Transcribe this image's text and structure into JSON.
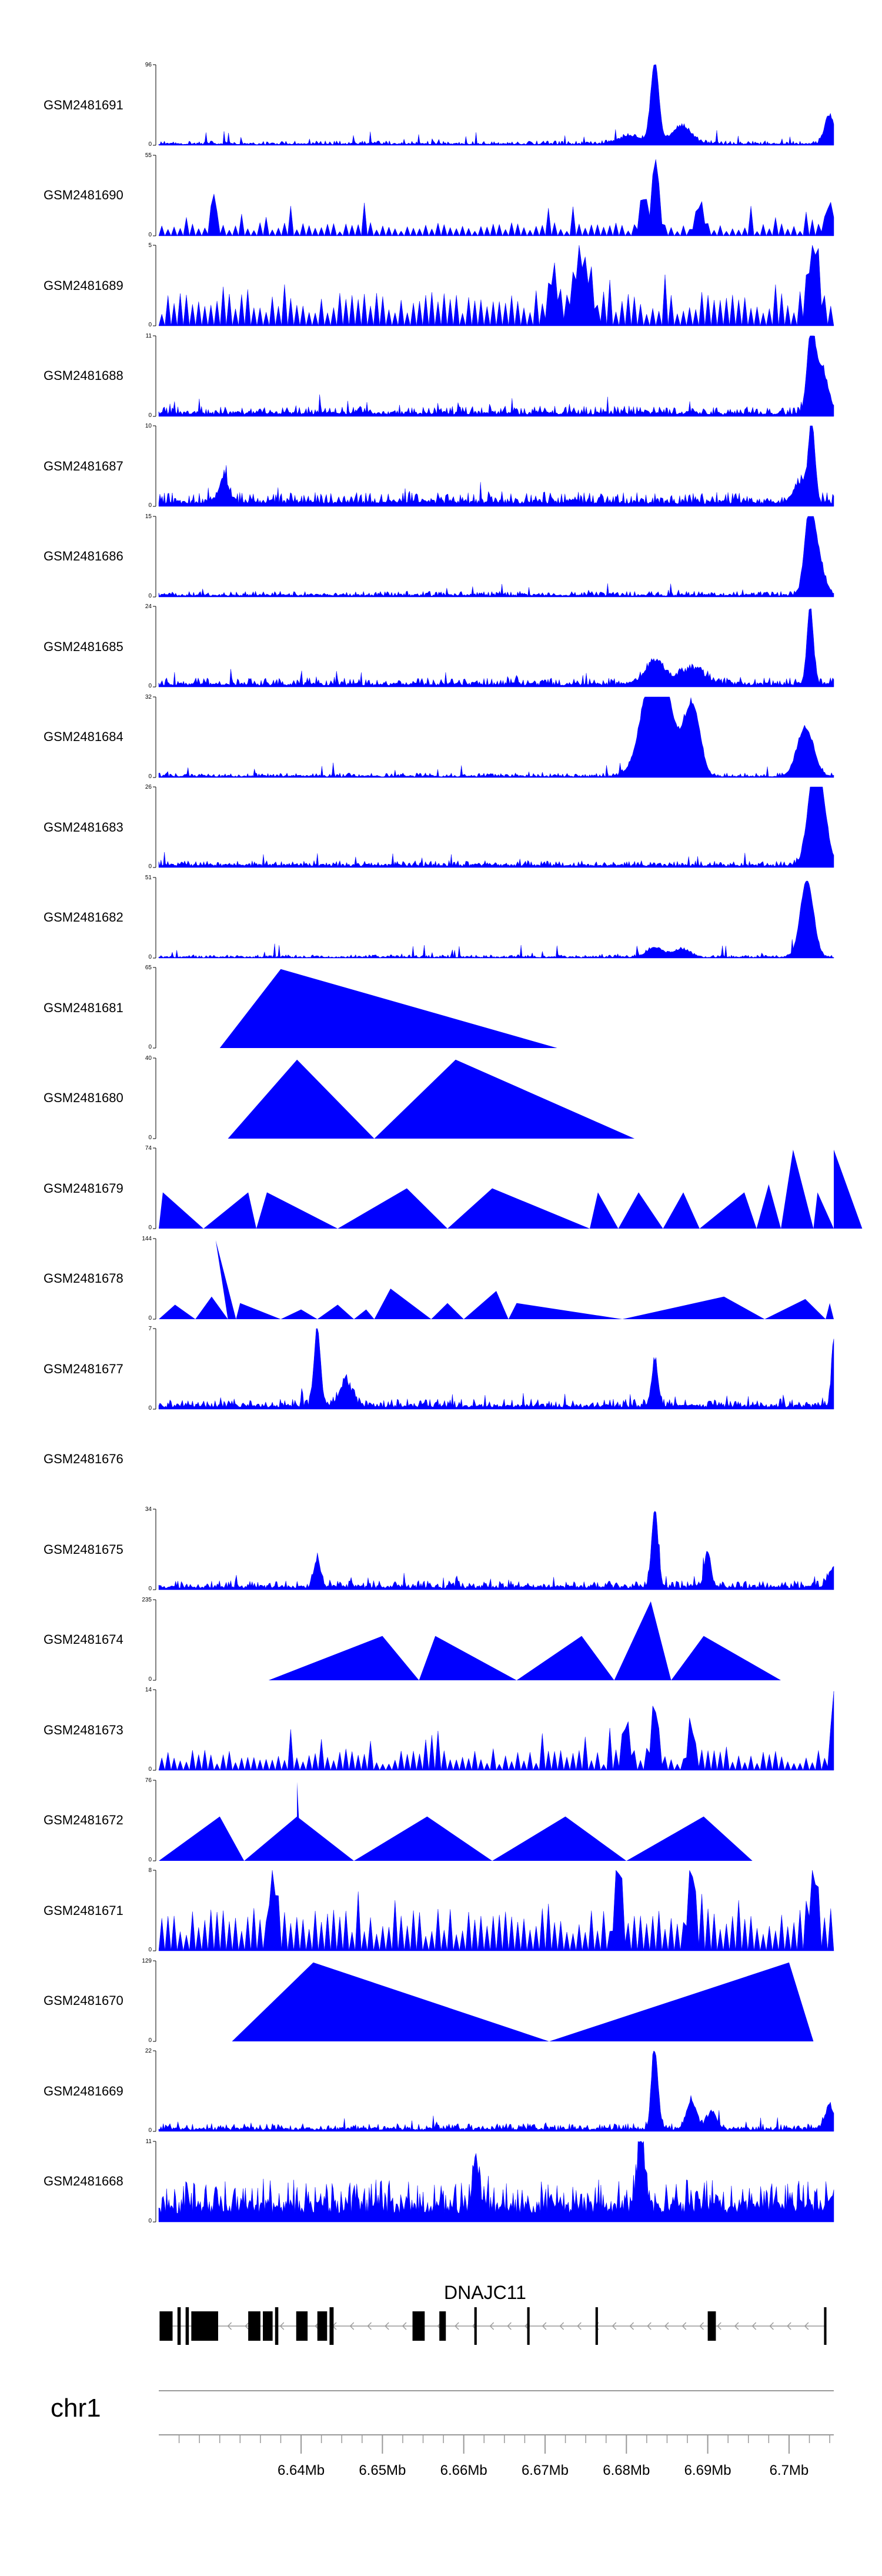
{
  "chart_data": {
    "type": "area",
    "title": "",
    "fill_color": "#0000ff",
    "gene_color": "#000000",
    "chromosome": "chr1",
    "gene": "DNAJC11",
    "xlim_mb": [
      6.6225,
      6.7055
    ],
    "x_ticks": [
      "6.64Mb",
      "6.65Mb",
      "6.66Mb",
      "6.67Mb",
      "6.68Mb",
      "6.69Mb",
      "6.7Mb"
    ],
    "x_tick_values": [
      6.64,
      6.65,
      6.66,
      6.67,
      6.68,
      6.69,
      6.7
    ],
    "exons_mb": [
      [
        6.6226,
        6.6242
      ],
      [
        6.6248,
        6.6252
      ],
      [
        6.6258,
        6.6262
      ],
      [
        6.6265,
        6.6298
      ],
      [
        6.6335,
        6.635
      ],
      [
        6.6353,
        6.6365
      ],
      [
        6.6368,
        6.6372
      ],
      [
        6.6394,
        6.6408
      ],
      [
        6.642,
        6.6432
      ],
      [
        6.6435,
        6.644
      ],
      [
        6.6537,
        6.6552
      ],
      [
        6.657,
        6.6578
      ],
      [
        6.6613,
        6.6616
      ],
      [
        6.6678,
        6.6681
      ],
      [
        6.6762,
        6.6765
      ],
      [
        6.69,
        6.691
      ],
      [
        6.7043,
        6.7046
      ]
    ],
    "tracks": [
      {
        "name": "GSM2481691",
        "ymax": "96",
        "ymin": "0",
        "style": "dense",
        "base": 0.03,
        "noise": 0.04,
        "peaks": [
          [
            6.6835,
            1.0,
            0.0005
          ],
          [
            6.6868,
            0.22,
            0.0012
          ],
          [
            6.6805,
            0.1,
            0.0015
          ],
          [
            6.705,
            0.35,
            0.0006
          ]
        ]
      },
      {
        "name": "GSM2481690",
        "ymax": "55",
        "ymin": "0",
        "style": "triangles",
        "base": 0.12,
        "noise": 0.12,
        "peaks": [
          [
            6.6293,
            0.52,
            0.0003
          ],
          [
            6.6836,
            0.95,
            0.0004
          ],
          [
            6.689,
            0.35,
            0.0005
          ],
          [
            6.705,
            0.38,
            0.0005
          ],
          [
            6.6821,
            0.45,
            0.0004
          ]
        ]
      },
      {
        "name": "GSM2481689",
        "ymax": "5",
        "ymin": "0",
        "style": "triangles",
        "base": 0.35,
        "noise": 0.28,
        "peaks": [
          [
            6.6745,
            0.72,
            0.001
          ],
          [
            6.703,
            0.95,
            0.0006
          ],
          [
            6.671,
            0.55,
            0.0005
          ]
        ]
      },
      {
        "name": "GSM2481688",
        "ymax": "11",
        "ymin": "0",
        "style": "dense",
        "base": 0.07,
        "noise": 0.09,
        "peaks": [
          [
            6.7027,
            0.95,
            0.0005
          ],
          [
            6.704,
            0.55,
            0.0008
          ]
        ]
      },
      {
        "name": "GSM2481687",
        "ymax": "10",
        "ymin": "0",
        "style": "dense",
        "base": 0.1,
        "noise": 0.12,
        "peaks": [
          [
            6.7028,
            0.95,
            0.0004
          ],
          [
            6.7015,
            0.25,
            0.0008
          ],
          [
            6.6305,
            0.3,
            0.0006
          ]
        ]
      },
      {
        "name": "GSM2481686",
        "ymax": "15",
        "ymin": "0",
        "style": "dense",
        "base": 0.04,
        "noise": 0.05,
        "peaks": [
          [
            6.7025,
            0.92,
            0.0006
          ],
          [
            6.7035,
            0.45,
            0.0008
          ]
        ]
      },
      {
        "name": "GSM2481685",
        "ymax": "24",
        "ymin": "0",
        "style": "dense",
        "base": 0.06,
        "noise": 0.08,
        "peaks": [
          [
            6.7026,
            0.95,
            0.0004
          ],
          [
            6.6835,
            0.28,
            0.0012
          ],
          [
            6.688,
            0.18,
            0.0015
          ]
        ]
      },
      {
        "name": "GSM2481684",
        "ymax": "32",
        "ymin": "0",
        "style": "dense",
        "base": 0.03,
        "noise": 0.04,
        "peaks": [
          [
            6.6833,
            0.95,
            0.0015
          ],
          [
            6.6843,
            0.75,
            0.0015
          ],
          [
            6.6885,
            0.6,
            0.0008
          ],
          [
            6.6875,
            0.45,
            0.0008
          ],
          [
            6.702,
            0.6,
            0.001
          ]
        ]
      },
      {
        "name": "GSM2481683",
        "ymax": "26",
        "ymin": "0",
        "style": "dense",
        "base": 0.05,
        "noise": 0.06,
        "peaks": [
          [
            6.703,
            0.95,
            0.0008
          ],
          [
            6.704,
            0.6,
            0.0008
          ]
        ]
      },
      {
        "name": "GSM2481682",
        "ymax": "51",
        "ymin": "0",
        "style": "dense",
        "base": 0.02,
        "noise": 0.03,
        "peaks": [
          [
            6.7022,
            0.95,
            0.0008
          ],
          [
            6.6835,
            0.12,
            0.001
          ],
          [
            6.6868,
            0.1,
            0.001
          ]
        ]
      },
      {
        "name": "GSM2481681",
        "ymax": "65",
        "ymin": "0",
        "style": "wide",
        "tri": [
          [
            6.63,
            6.6375,
            6.6715,
            0.98
          ]
        ]
      },
      {
        "name": "GSM2481680",
        "ymax": "40",
        "ymin": "0",
        "style": "wide",
        "tri": [
          [
            6.631,
            6.6395,
            6.649,
            0.98
          ],
          [
            6.649,
            6.659,
            6.681,
            0.98
          ]
        ]
      },
      {
        "name": "GSM2481679",
        "ymax": "74",
        "ymin": "0",
        "style": "wide",
        "tri": [
          [
            6.6225,
            6.623,
            6.628,
            0.45
          ],
          [
            6.628,
            6.6335,
            6.6345,
            0.45
          ],
          [
            6.6345,
            6.6358,
            6.6445,
            0.45
          ],
          [
            6.6445,
            6.653,
            6.658,
            0.5
          ],
          [
            6.658,
            6.6635,
            6.6755,
            0.5
          ],
          [
            6.6755,
            6.6765,
            6.679,
            0.45
          ],
          [
            6.679,
            6.6815,
            6.6845,
            0.45
          ],
          [
            6.6845,
            6.687,
            6.689,
            0.45
          ],
          [
            6.689,
            6.6945,
            6.696,
            0.45
          ],
          [
            6.696,
            6.6975,
            6.699,
            0.55
          ],
          [
            6.699,
            6.7005,
            6.703,
            0.98
          ],
          [
            6.703,
            6.7035,
            6.707,
            0.45
          ],
          [
            6.707,
            6.7085,
            6.709,
            0.45
          ],
          [
            6.709,
            6.7105,
            6.713,
            0.98
          ]
        ]
      },
      {
        "name": "GSM2481678",
        "ymax": "144",
        "ymin": "0",
        "style": "wide",
        "tri": [
          [
            6.6225,
            6.6245,
            6.627,
            0.18
          ],
          [
            6.627,
            6.629,
            6.631,
            0.28
          ],
          [
            6.631,
            6.6295,
            6.632,
            0.98
          ],
          [
            6.632,
            6.6325,
            6.6375,
            0.2
          ],
          [
            6.6375,
            6.64,
            6.642,
            0.12
          ],
          [
            6.642,
            6.6445,
            6.6465,
            0.18
          ],
          [
            6.6465,
            6.648,
            6.649,
            0.12
          ],
          [
            6.649,
            6.651,
            6.656,
            0.38
          ],
          [
            6.656,
            6.658,
            6.66,
            0.2
          ],
          [
            6.66,
            6.664,
            6.6655,
            0.35
          ],
          [
            6.6655,
            6.6665,
            6.6795,
            0.2
          ],
          [
            6.6795,
            6.692,
            6.697,
            0.28
          ],
          [
            6.697,
            6.702,
            6.7045,
            0.25
          ],
          [
            6.7045,
            6.705,
            6.7055,
            0.2
          ]
        ]
      },
      {
        "name": "GSM2481677",
        "ymax": "7",
        "ymin": "0",
        "style": "dense",
        "base": 0.07,
        "noise": 0.09,
        "peaks": [
          [
            6.642,
            0.95,
            0.0004
          ],
          [
            6.6835,
            0.55,
            0.0004
          ],
          [
            6.7055,
            0.75,
            0.0003
          ],
          [
            6.6455,
            0.28,
            0.0008
          ]
        ]
      },
      {
        "name": "GSM2481676",
        "ymax": "",
        "ymin": "",
        "style": "empty"
      },
      {
        "name": "GSM2481675",
        "ymax": "34",
        "ymin": "0",
        "style": "dense",
        "base": 0.06,
        "noise": 0.08,
        "peaks": [
          [
            6.6835,
            0.95,
            0.0004
          ],
          [
            6.69,
            0.45,
            0.0004
          ],
          [
            6.642,
            0.35,
            0.0004
          ],
          [
            6.7055,
            0.25,
            0.0006
          ]
        ]
      },
      {
        "name": "GSM2481674",
        "ymax": "235",
        "ymin": "0",
        "style": "wide",
        "tri": [
          [
            6.636,
            6.65,
            6.6545,
            0.55
          ],
          [
            6.6545,
            6.6565,
            6.6665,
            0.55
          ],
          [
            6.6665,
            6.6745,
            6.6785,
            0.55
          ],
          [
            6.6785,
            6.683,
            6.6855,
            0.98
          ],
          [
            6.6855,
            6.6895,
            6.699,
            0.55
          ]
        ]
      },
      {
        "name": "GSM2481673",
        "ymax": "14",
        "ymin": "0",
        "style": "triangles",
        "base": 0.18,
        "noise": 0.18,
        "peaks": [
          [
            6.6835,
            0.75,
            0.0004
          ],
          [
            6.7055,
            0.98,
            0.0003
          ],
          [
            6.68,
            0.55,
            0.0004
          ],
          [
            6.688,
            0.5,
            0.0004
          ]
        ]
      },
      {
        "name": "GSM2481672",
        "ymax": "76",
        "ymin": "0",
        "style": "wide",
        "tri": [
          [
            6.6225,
            6.63,
            6.633,
            0.55
          ],
          [
            6.633,
            6.6395,
            6.6465,
            0.55
          ],
          [
            6.6465,
            6.6555,
            6.6635,
            0.55
          ],
          [
            6.6635,
            6.6725,
            6.68,
            0.55
          ],
          [
            6.68,
            6.6895,
            6.6955,
            0.55
          ],
          [
            6.6395,
            6.6395,
            6.64,
            0.98
          ]
        ]
      },
      {
        "name": "GSM2481671",
        "ymax": "8",
        "ymin": "0",
        "style": "triangles",
        "base": 0.45,
        "noise": 0.35,
        "peaks": [
          [
            6.679,
            0.98,
            0.0004
          ],
          [
            6.6365,
            0.98,
            0.0004
          ],
          [
            6.688,
            0.98,
            0.0004
          ],
          [
            6.703,
            0.98,
            0.0004
          ]
        ]
      },
      {
        "name": "GSM2481670",
        "ymax": "129",
        "ymin": "0",
        "style": "wide",
        "tri": [
          [
            6.6315,
            6.6415,
            6.6705,
            0.98
          ],
          [
            6.6705,
            6.7,
            6.703,
            0.98
          ]
        ]
      },
      {
        "name": "GSM2481669",
        "ymax": "22",
        "ymin": "0",
        "style": "dense",
        "base": 0.05,
        "noise": 0.07,
        "peaks": [
          [
            6.6835,
            0.95,
            0.0004
          ],
          [
            6.688,
            0.35,
            0.0006
          ],
          [
            6.6905,
            0.22,
            0.0006
          ],
          [
            6.705,
            0.28,
            0.0006
          ]
        ]
      },
      {
        "name": "GSM2481668",
        "ymax": "11",
        "ymin": "0",
        "style": "dense",
        "base": 0.35,
        "noise": 0.35,
        "peaks": [
          [
            6.6818,
            0.95,
            0.0004
          ],
          [
            6.6615,
            0.6,
            0.0004
          ]
        ]
      }
    ]
  }
}
